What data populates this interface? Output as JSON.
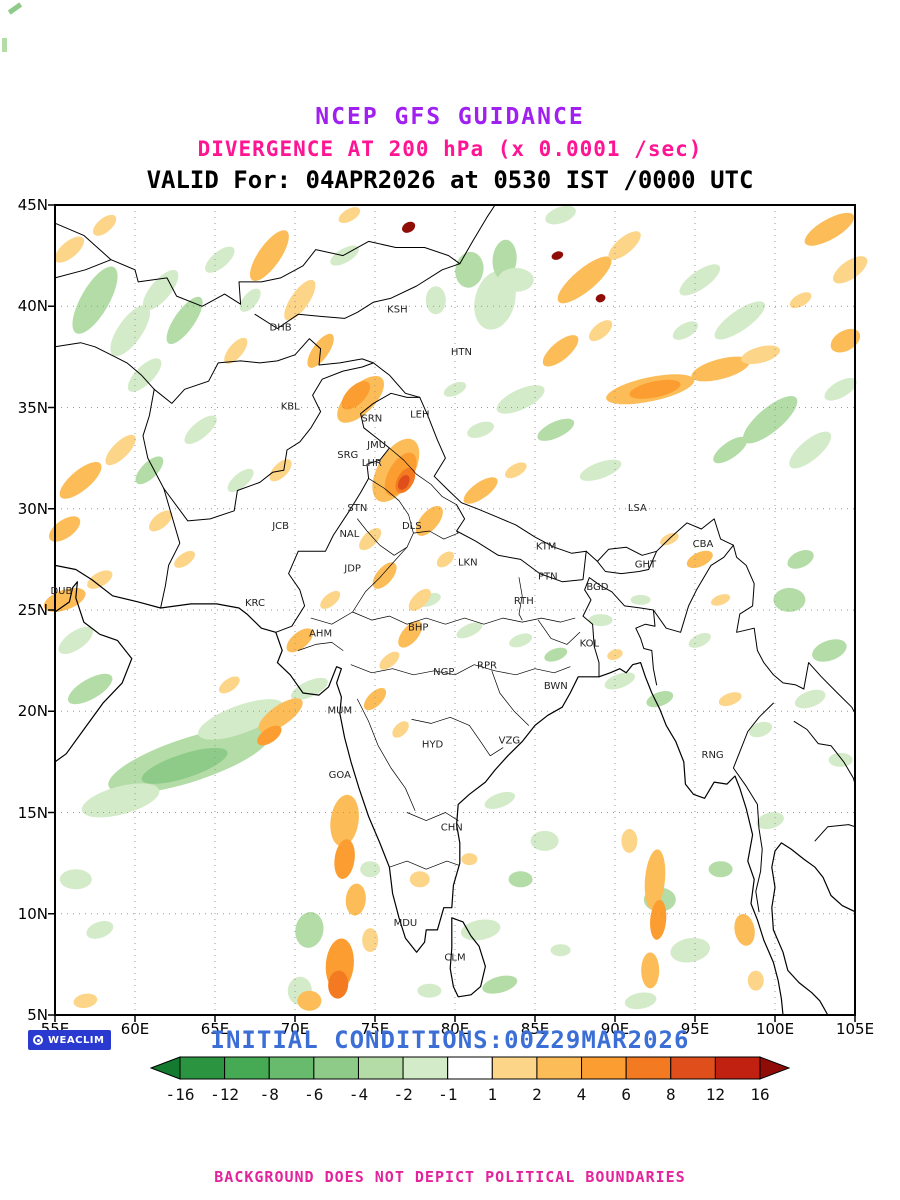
{
  "header": {
    "title": "NCEP GFS GUIDANCE",
    "subtitle": "DIVERGENCE AT 200 hPa (x 0.0001 /sec)",
    "valid": "VALID For: 04APR2026 at 0530 IST /0000 UTC"
  },
  "footer": {
    "logo": "WEACLIM",
    "initial_conditions": "INITIAL CONDITIONS:00Z29MAR2026",
    "disclaimer": "BACKGROUND DOES NOT DEPICT POLITICAL BOUNDARIES"
  },
  "chart_data": {
    "type": "heatmap",
    "title": "NCEP GFS GUIDANCE",
    "variable": "DIVERGENCE AT 200 hPa (x 0.0001 /sec)",
    "valid_time": "04APR2026 0530 IST / 0000 UTC",
    "initial_time": "00Z 29MAR2026",
    "x_axis": {
      "range": [
        55,
        105
      ],
      "ticks": [
        55,
        60,
        65,
        70,
        75,
        80,
        85,
        90,
        95,
        100,
        105
      ],
      "labels": [
        "55E",
        "60E",
        "65E",
        "70E",
        "75E",
        "80E",
        "85E",
        "90E",
        "95E",
        "100E",
        "105E"
      ]
    },
    "y_axis": {
      "range": [
        5,
        45
      ],
      "ticks": [
        5,
        10,
        15,
        20,
        25,
        30,
        35,
        40,
        45
      ],
      "labels": [
        "5N",
        "10N",
        "15N",
        "20N",
        "25N",
        "30N",
        "35N",
        "40N",
        "45N"
      ]
    },
    "colorbar": {
      "levels": [
        -16,
        -12,
        -8,
        -6,
        -4,
        -2,
        -1,
        1,
        2,
        4,
        6,
        8,
        12,
        16
      ],
      "labels": [
        "-16",
        "-12",
        "-8",
        "-6",
        "-4",
        "-2",
        "-1",
        "1",
        "2",
        "4",
        "6",
        "8",
        "12",
        "16"
      ],
      "cell_colors": [
        "#2a9440",
        "#46a954",
        "#68bb6d",
        "#8ecb88",
        "#b3dca6",
        "#d3ebc8",
        "#ffffff",
        "#fcd589",
        "#fcbc57",
        "#fb9d31",
        "#f37a21",
        "#e04f1b",
        "#c02110"
      ],
      "arrow_left_color": "#137a30",
      "arrow_right_color": "#8f0d06"
    },
    "accent_colors": {
      "title": "#a020f0",
      "subtitle": "#ff1493",
      "initial": "#3c6fd6",
      "disclaimer": "#e2239c",
      "logo_bg": "#2a3ad0"
    },
    "station_columns": [
      "code",
      "lon",
      "lat"
    ],
    "stations": [
      [
        "DHB",
        69.1,
        38.8
      ],
      [
        "KSH",
        76.4,
        39.7
      ],
      [
        "HTN",
        80.4,
        37.6
      ],
      [
        "KBL",
        69.7,
        34.9
      ],
      [
        "SRN",
        74.8,
        34.3
      ],
      [
        "LEH",
        77.8,
        34.5
      ],
      [
        "JMU",
        75.1,
        33.0
      ],
      [
        "SRG",
        73.3,
        32.5
      ],
      [
        "LHR",
        74.8,
        32.1
      ],
      [
        "STN",
        73.9,
        29.9
      ],
      [
        "JCB",
        69.1,
        29.0
      ],
      [
        "NAL",
        73.4,
        28.6
      ],
      [
        "DLS",
        77.3,
        29.0
      ],
      [
        "JDP",
        73.6,
        26.9
      ],
      [
        "LKN",
        80.8,
        27.2
      ],
      [
        "KTM",
        85.7,
        28.0
      ],
      [
        "LSA",
        91.4,
        29.9
      ],
      [
        "GHT",
        91.9,
        27.1
      ],
      [
        "CBA",
        95.5,
        28.1
      ],
      [
        "DUB",
        55.4,
        25.8
      ],
      [
        "KRC",
        67.5,
        25.2
      ],
      [
        "AHM",
        71.6,
        23.7
      ],
      [
        "BHP",
        77.7,
        24.0
      ],
      [
        "PTN",
        85.8,
        26.5
      ],
      [
        "RTH",
        84.3,
        25.3
      ],
      [
        "BGD",
        88.9,
        26.0
      ],
      [
        "KOL",
        88.4,
        23.2
      ],
      [
        "NGP",
        79.3,
        21.8
      ],
      [
        "RPR",
        82.0,
        22.1
      ],
      [
        "BWN",
        86.3,
        21.1
      ],
      [
        "MUM",
        72.8,
        19.9
      ],
      [
        "HYD",
        78.6,
        18.2
      ],
      [
        "VZG",
        83.4,
        18.4
      ],
      [
        "RNG",
        96.1,
        17.7
      ],
      [
        "GOA",
        72.8,
        16.7
      ],
      [
        "CHN",
        79.8,
        14.1
      ],
      [
        "MDU",
        76.9,
        9.4
      ],
      [
        "CLM",
        80.0,
        7.7
      ]
    ],
    "shading_columns": [
      "lon",
      "lat",
      "rx_px",
      "ry_px",
      "rot_deg",
      "value"
    ],
    "shading": [
      [
        57.5,
        40.3,
        38,
        14,
        -60,
        -3
      ],
      [
        59.7,
        38.8,
        30,
        12,
        -55,
        -1.5
      ],
      [
        61.6,
        40.8,
        25,
        10,
        -50,
        -1.5
      ],
      [
        63.1,
        39.3,
        28,
        10,
        -55,
        -3
      ],
      [
        60.6,
        36.6,
        22,
        9,
        -45,
        -1.5
      ],
      [
        65.3,
        42.3,
        18,
        8,
        -40,
        -1.5
      ],
      [
        67.2,
        40.3,
        14,
        7,
        -50,
        -1.5
      ],
      [
        73.1,
        42.5,
        16,
        7,
        -30,
        -1.5
      ],
      [
        80.9,
        41.8,
        14,
        18,
        10,
        -3
      ],
      [
        82.5,
        40.3,
        20,
        30,
        15,
        -1.5
      ],
      [
        83.1,
        42.3,
        12,
        20,
        5,
        -3
      ],
      [
        78.8,
        40.3,
        10,
        14,
        0,
        -1.5
      ],
      [
        86.6,
        44.5,
        16,
        8,
        -20,
        -1.5
      ],
      [
        83.8,
        41.3,
        18,
        12,
        0,
        -1.5
      ],
      [
        95.3,
        41.3,
        24,
        9,
        -35,
        -1.5
      ],
      [
        97.8,
        39.3,
        30,
        10,
        -35,
        -1.5
      ],
      [
        99.7,
        34.4,
        34,
        12,
        -40,
        -3
      ],
      [
        102.2,
        32.9,
        26,
        10,
        -40,
        -1.5
      ],
      [
        97.2,
        32.9,
        20,
        8,
        -35,
        -3
      ],
      [
        104.1,
        35.9,
        18,
        8,
        -30,
        -1.5
      ],
      [
        94.4,
        38.8,
        14,
        7,
        -30,
        -1.5
      ],
      [
        84.1,
        35.4,
        26,
        10,
        -25,
        -1.5
      ],
      [
        86.3,
        33.9,
        20,
        8,
        -25,
        -3
      ],
      [
        89.1,
        31.9,
        22,
        8,
        -20,
        -1.5
      ],
      [
        81.6,
        33.9,
        14,
        7,
        -20,
        -1.5
      ],
      [
        80.0,
        35.9,
        12,
        6,
        -25,
        -1.5
      ],
      [
        64.1,
        33.9,
        20,
        8,
        -40,
        -1.5
      ],
      [
        66.6,
        31.4,
        16,
        7,
        -40,
        -1.5
      ],
      [
        60.9,
        31.9,
        18,
        8,
        -45,
        -3
      ],
      [
        63.4,
        17.6,
        85,
        22,
        -18,
        -3
      ],
      [
        63.1,
        17.3,
        45,
        12,
        -18,
        -5
      ],
      [
        66.6,
        19.6,
        45,
        14,
        -20,
        -1.5
      ],
      [
        59.1,
        15.6,
        40,
        14,
        -15,
        -1.5
      ],
      [
        57.2,
        21.1,
        25,
        10,
        -30,
        -3
      ],
      [
        56.3,
        23.5,
        20,
        9,
        -35,
        -1.5
      ],
      [
        70.9,
        21.1,
        20,
        8,
        -25,
        -1.5
      ],
      [
        56.3,
        11.7,
        16,
        10,
        0,
        -1.5
      ],
      [
        57.8,
        9.2,
        14,
        8,
        -20,
        -1.5
      ],
      [
        78.4,
        25.5,
        12,
        6,
        -20,
        -1.5
      ],
      [
        80.9,
        24.0,
        14,
        6,
        -25,
        -1.5
      ],
      [
        84.1,
        23.5,
        12,
        6,
        -20,
        -1.5
      ],
      [
        86.3,
        22.8,
        12,
        6,
        -20,
        -3
      ],
      [
        89.1,
        24.5,
        12,
        6,
        0,
        -1.5
      ],
      [
        91.6,
        25.5,
        10,
        5,
        0,
        -1.5
      ],
      [
        90.3,
        21.5,
        16,
        7,
        -20,
        -1.5
      ],
      [
        92.8,
        20.6,
        14,
        7,
        -20,
        -3
      ],
      [
        95.3,
        23.5,
        12,
        6,
        -25,
        -1.5
      ],
      [
        100.9,
        25.5,
        16,
        12,
        0,
        -3
      ],
      [
        103.4,
        23.0,
        18,
        10,
        -20,
        -3
      ],
      [
        102.2,
        20.6,
        16,
        8,
        -20,
        -1.5
      ],
      [
        82.8,
        15.6,
        16,
        7,
        -20,
        -1.5
      ],
      [
        85.6,
        13.6,
        14,
        10,
        0,
        -1.5
      ],
      [
        84.1,
        11.7,
        12,
        8,
        0,
        -3
      ],
      [
        81.6,
        9.2,
        20,
        10,
        -10,
        -1.5
      ],
      [
        82.8,
        6.5,
        18,
        8,
        -15,
        -3
      ],
      [
        78.4,
        6.2,
        12,
        7,
        0,
        -1.5
      ],
      [
        86.6,
        8.2,
        10,
        6,
        0,
        -1.5
      ],
      [
        92.8,
        10.7,
        16,
        12,
        0,
        -3
      ],
      [
        94.7,
        8.2,
        20,
        12,
        -10,
        -1.5
      ],
      [
        96.6,
        12.2,
        12,
        8,
        0,
        -3
      ],
      [
        99.7,
        14.6,
        14,
        8,
        -15,
        -1.5
      ],
      [
        104.1,
        17.6,
        12,
        7,
        0,
        -1.5
      ],
      [
        91.6,
        5.7,
        16,
        8,
        -10,
        -1.5
      ],
      [
        70.9,
        9.2,
        14,
        18,
        10,
        -3
      ],
      [
        70.3,
        6.2,
        12,
        14,
        5,
        -1.5
      ],
      [
        74.7,
        12.2,
        10,
        8,
        0,
        -1.5
      ],
      [
        99.1,
        19.1,
        12,
        7,
        -20,
        -1.5
      ],
      [
        101.6,
        27.5,
        14,
        8,
        -25,
        -3
      ],
      [
        68.4,
        42.5,
        30,
        11,
        -55,
        3
      ],
      [
        70.3,
        40.3,
        24,
        9,
        -55,
        1.5
      ],
      [
        66.3,
        37.8,
        16,
        7,
        -50,
        1.5
      ],
      [
        71.6,
        37.8,
        20,
        8,
        -55,
        3
      ],
      [
        55.9,
        42.8,
        18,
        8,
        -40,
        1.5
      ],
      [
        58.1,
        44.0,
        14,
        7,
        -40,
        1.5
      ],
      [
        74.1,
        35.4,
        30,
        14,
        -45,
        3
      ],
      [
        73.8,
        35.6,
        18,
        9,
        -45,
        5
      ],
      [
        76.3,
        31.9,
        35,
        18,
        -60,
        3
      ],
      [
        76.6,
        31.7,
        24,
        12,
        -60,
        5
      ],
      [
        76.9,
        31.4,
        14,
        8,
        -60,
        7
      ],
      [
        76.8,
        31.3,
        8,
        5,
        -60,
        10
      ],
      [
        78.4,
        29.4,
        18,
        9,
        -50,
        3
      ],
      [
        74.7,
        28.5,
        14,
        7,
        -45,
        1.5
      ],
      [
        75.6,
        26.7,
        16,
        8,
        -50,
        3
      ],
      [
        77.8,
        25.5,
        14,
        7,
        -45,
        1.5
      ],
      [
        77.2,
        23.8,
        16,
        8,
        -50,
        3
      ],
      [
        79.4,
        27.5,
        10,
        6,
        -40,
        1.5
      ],
      [
        88.1,
        41.3,
        34,
        11,
        -40,
        3
      ],
      [
        90.6,
        43.0,
        20,
        8,
        -40,
        1.5
      ],
      [
        86.6,
        37.8,
        22,
        9,
        -40,
        3
      ],
      [
        89.1,
        38.8,
        14,
        7,
        -40,
        1.5
      ],
      [
        92.2,
        35.9,
        45,
        12,
        -12,
        3
      ],
      [
        92.5,
        35.9,
        26,
        8,
        -12,
        5
      ],
      [
        96.6,
        36.9,
        30,
        10,
        -15,
        3
      ],
      [
        99.1,
        37.6,
        20,
        8,
        -15,
        1.5
      ],
      [
        103.4,
        43.8,
        28,
        10,
        -30,
        3
      ],
      [
        104.7,
        41.8,
        20,
        9,
        -35,
        1.5
      ],
      [
        104.4,
        38.3,
        16,
        10,
        -30,
        3
      ],
      [
        101.6,
        40.3,
        12,
        6,
        -30,
        1.5
      ],
      [
        56.6,
        31.4,
        26,
        10,
        -40,
        3
      ],
      [
        59.1,
        32.9,
        20,
        8,
        -45,
        1.5
      ],
      [
        55.6,
        29.0,
        18,
        9,
        -35,
        3
      ],
      [
        61.6,
        29.4,
        14,
        7,
        -40,
        1.5
      ],
      [
        55.6,
        25.5,
        22,
        10,
        -20,
        3
      ],
      [
        57.8,
        26.5,
        14,
        7,
        -30,
        1.5
      ],
      [
        69.1,
        31.9,
        14,
        7,
        -45,
        1.5
      ],
      [
        70.3,
        23.5,
        16,
        8,
        -40,
        3
      ],
      [
        72.2,
        25.5,
        12,
        6,
        -40,
        1.5
      ],
      [
        69.1,
        19.8,
        26,
        10,
        -35,
        3
      ],
      [
        68.4,
        18.8,
        14,
        7,
        -35,
        5
      ],
      [
        65.9,
        21.3,
        12,
        6,
        -35,
        1.5
      ],
      [
        75.9,
        22.5,
        12,
        6,
        -40,
        1.5
      ],
      [
        75.0,
        20.6,
        14,
        7,
        -45,
        3
      ],
      [
        76.6,
        19.1,
        10,
        6,
        -45,
        1.5
      ],
      [
        73.1,
        14.6,
        14,
        26,
        8,
        3
      ],
      [
        73.1,
        12.7,
        10,
        20,
        8,
        5
      ],
      [
        73.8,
        10.7,
        10,
        16,
        5,
        3
      ],
      [
        72.8,
        7.5,
        14,
        26,
        5,
        5
      ],
      [
        72.7,
        6.5,
        10,
        14,
        5,
        7
      ],
      [
        74.7,
        8.7,
        8,
        12,
        0,
        1.5
      ],
      [
        70.9,
        5.7,
        12,
        10,
        0,
        3
      ],
      [
        77.8,
        11.7,
        10,
        8,
        0,
        1.5
      ],
      [
        80.9,
        12.7,
        8,
        6,
        0,
        1.5
      ],
      [
        92.5,
        11.7,
        10,
        30,
        5,
        3
      ],
      [
        92.7,
        9.7,
        8,
        20,
        5,
        5
      ],
      [
        92.2,
        7.2,
        9,
        18,
        0,
        3
      ],
      [
        90.9,
        13.6,
        8,
        12,
        0,
        1.5
      ],
      [
        98.1,
        9.2,
        10,
        16,
        -10,
        3
      ],
      [
        98.8,
        6.7,
        8,
        10,
        0,
        1.5
      ],
      [
        97.2,
        20.6,
        12,
        6,
        -20,
        1.5
      ],
      [
        95.3,
        27.5,
        14,
        7,
        -25,
        3
      ],
      [
        93.4,
        28.5,
        10,
        5,
        -25,
        1.5
      ],
      [
        96.6,
        25.5,
        10,
        5,
        -20,
        1.5
      ],
      [
        90.0,
        22.8,
        8,
        5,
        -20,
        1.5
      ],
      [
        81.6,
        30.9,
        20,
        8,
        -35,
        3
      ],
      [
        83.8,
        31.9,
        12,
        6,
        -30,
        1.5
      ],
      [
        56.9,
        5.7,
        12,
        7,
        -10,
        1.5
      ],
      [
        63.1,
        27.5,
        12,
        6,
        -35,
        1.5
      ],
      [
        73.4,
        44.5,
        12,
        6,
        -30,
        1.5
      ],
      [
        77.1,
        43.9,
        7,
        5,
        -30,
        20
      ],
      [
        86.4,
        42.5,
        6,
        4,
        -20,
        20
      ],
      [
        89.1,
        40.4,
        5,
        4,
        -20,
        20
      ]
    ]
  }
}
